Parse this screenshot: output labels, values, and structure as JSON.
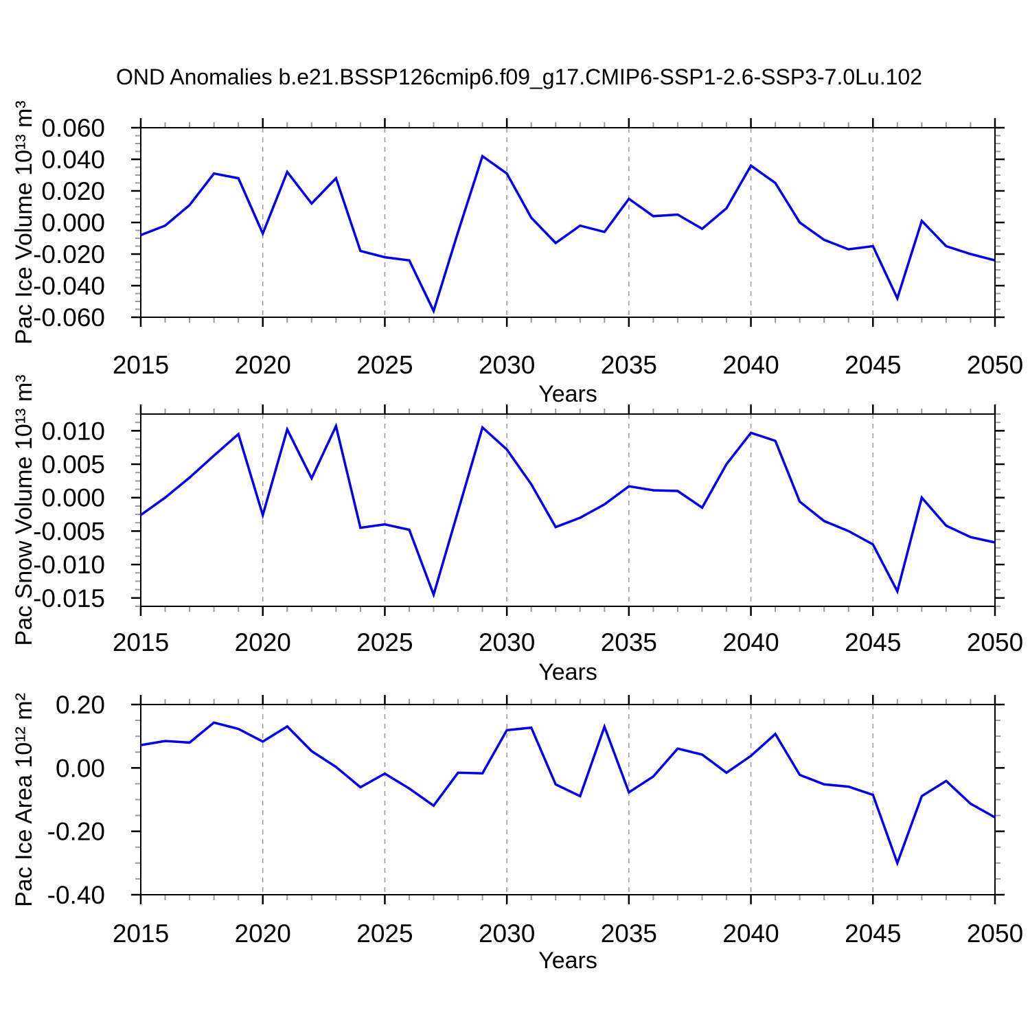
{
  "title": "OND Anomalies b.e21.BSSP126cmip6.f09_g17.CMIP6-SSP1-2.6-SSP3-7.0Lu.102",
  "colors": {
    "line": "#0000EE",
    "frame": "#000000",
    "grid": "#999999",
    "minor_tick": "#999999",
    "major_tick": "#000000",
    "text": "#000000",
    "background": "#FFFFFF"
  },
  "chart_data": [
    {
      "type": "line",
      "name": "pac-ice-volume",
      "ylabel": "Pac Ice Volume 10¹³ m³",
      "xlabel": "Years",
      "x": [
        2015,
        2016,
        2017,
        2018,
        2019,
        2020,
        2021,
        2022,
        2023,
        2024,
        2025,
        2026,
        2027,
        2028,
        2029,
        2030,
        2031,
        2032,
        2033,
        2034,
        2035,
        2036,
        2037,
        2038,
        2039,
        2040,
        2041,
        2042,
        2043,
        2044,
        2045,
        2046,
        2047,
        2048,
        2049,
        2050
      ],
      "values": [
        -0.008,
        -0.002,
        0.011,
        0.031,
        0.028,
        -0.007,
        0.032,
        0.012,
        0.028,
        -0.018,
        -0.022,
        -0.024,
        -0.056,
        -0.006,
        0.042,
        0.031,
        0.003,
        -0.013,
        -0.002,
        -0.006,
        0.015,
        0.004,
        0.005,
        -0.004,
        0.009,
        0.036,
        0.025,
        0.0,
        -0.011,
        -0.017,
        -0.015,
        -0.048,
        0.001,
        -0.015,
        -0.02,
        -0.024
      ],
      "xlim": [
        2015,
        2050
      ],
      "ylim": [
        -0.06,
        0.06
      ],
      "xticks": [
        2015,
        2020,
        2025,
        2030,
        2035,
        2040,
        2045,
        2050
      ],
      "xtick_labels": [
        "2015",
        "2020",
        "2025",
        "2030",
        "2035",
        "2040",
        "2045",
        "2050"
      ],
      "x_minor_step": 1,
      "ytick_values": [
        0.06,
        0.04,
        0.02,
        0.0,
        -0.02,
        -0.04,
        -0.06
      ],
      "ytick_labels": [
        "0.060",
        "0.040",
        "0.020",
        "0.000",
        "-0.020",
        "-0.040",
        "-0.060"
      ],
      "y_minor_step": 0.005,
      "grid_years": [
        2020,
        2025,
        2030,
        2035,
        2040,
        2045
      ],
      "grid_style": "dashed"
    },
    {
      "type": "line",
      "name": "pac-snow-volume",
      "ylabel": "Pac Snow Volume 10¹³ m³",
      "xlabel": "Years",
      "x": [
        2015,
        2016,
        2017,
        2018,
        2019,
        2020,
        2021,
        2022,
        2023,
        2024,
        2025,
        2026,
        2027,
        2028,
        2029,
        2030,
        2031,
        2032,
        2033,
        2034,
        2035,
        2036,
        2037,
        2038,
        2039,
        2040,
        2041,
        2042,
        2043,
        2044,
        2045,
        2046,
        2047,
        2048,
        2049,
        2050
      ],
      "values": [
        -0.0026,
        0.0,
        0.003,
        0.0063,
        0.0095,
        -0.0026,
        0.0102,
        0.0029,
        0.0107,
        -0.0045,
        -0.004,
        -0.0048,
        -0.0145,
        -0.002,
        0.0105,
        0.0072,
        0.002,
        -0.0044,
        -0.003,
        -0.001,
        0.0017,
        0.0011,
        0.001,
        -0.0015,
        0.005,
        0.0097,
        0.0085,
        -0.0006,
        -0.0035,
        -0.005,
        -0.007,
        -0.014,
        0.0,
        -0.0042,
        -0.0059,
        -0.0067
      ],
      "xlim": [
        2015,
        2050
      ],
      "ylim": [
        -0.01625,
        0.0125
      ],
      "xticks": [
        2015,
        2020,
        2025,
        2030,
        2035,
        2040,
        2045,
        2050
      ],
      "xtick_labels": [
        "2015",
        "2020",
        "2025",
        "2030",
        "2035",
        "2040",
        "2045",
        "2050"
      ],
      "x_minor_step": 1,
      "ytick_values": [
        0.01,
        0.005,
        0.0,
        -0.005,
        -0.01,
        -0.015
      ],
      "ytick_labels": [
        "0.010",
        "0.005",
        "0.000",
        "-0.005",
        "-0.010",
        "-0.015"
      ],
      "y_minor_step": 0.00125,
      "grid_years": [
        2020,
        2025,
        2030,
        2035,
        2040,
        2045
      ],
      "grid_style": "dashed"
    },
    {
      "type": "line",
      "name": "pac-ice-area",
      "ylabel": "Pac Ice Area 10¹² m²",
      "xlabel": "Years",
      "x": [
        2015,
        2016,
        2017,
        2018,
        2019,
        2020,
        2021,
        2022,
        2023,
        2024,
        2025,
        2026,
        2027,
        2028,
        2029,
        2030,
        2031,
        2032,
        2033,
        2034,
        2035,
        2036,
        2037,
        2038,
        2039,
        2040,
        2041,
        2042,
        2043,
        2044,
        2045,
        2046,
        2047,
        2048,
        2049,
        2050
      ],
      "values": [
        0.072,
        0.085,
        0.08,
        0.143,
        0.123,
        0.083,
        0.131,
        0.053,
        0.003,
        -0.061,
        -0.018,
        -0.065,
        -0.119,
        -0.015,
        -0.017,
        0.119,
        0.127,
        -0.052,
        -0.089,
        0.13,
        -0.077,
        -0.027,
        0.061,
        0.042,
        -0.015,
        0.038,
        0.107,
        -0.022,
        -0.052,
        -0.059,
        -0.085,
        -0.3,
        -0.089,
        -0.041,
        -0.113,
        -0.156
      ],
      "xlim": [
        2015,
        2050
      ],
      "ylim": [
        -0.4,
        0.2
      ],
      "xticks": [
        2015,
        2020,
        2025,
        2030,
        2035,
        2040,
        2045,
        2050
      ],
      "xtick_labels": [
        "2015",
        "2020",
        "2025",
        "2030",
        "2035",
        "2040",
        "2045",
        "2050"
      ],
      "x_minor_step": 1,
      "ytick_values": [
        0.2,
        0.0,
        -0.2,
        -0.4
      ],
      "ytick_labels": [
        "0.20",
        "0.00",
        "-0.20",
        "-0.40"
      ],
      "y_minor_step": 0.05,
      "grid_years": [
        2020,
        2025,
        2030,
        2035,
        2040,
        2045
      ],
      "grid_style": "dashed"
    }
  ]
}
